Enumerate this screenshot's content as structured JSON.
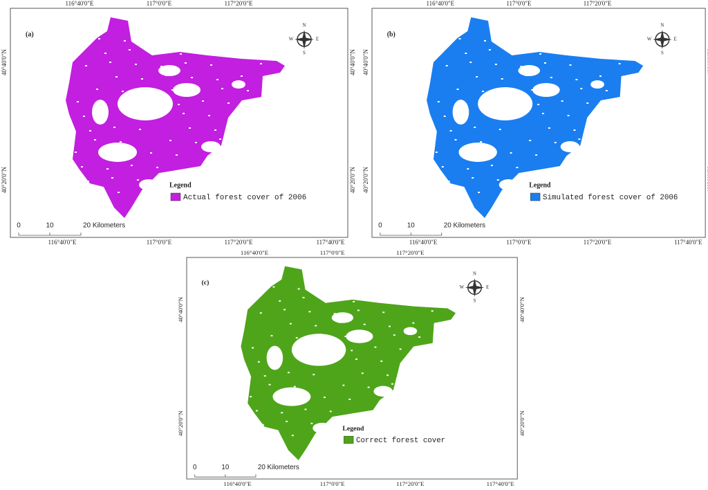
{
  "panels": [
    {
      "label": "(a)",
      "color": "#c21fe0",
      "top_ticks": [
        "116°40'0\"E",
        "117°0'0\"E",
        "117°20'0\"E"
      ],
      "bottom_ticks": [
        "116°40'0\"E",
        "117°0'0\"E",
        "117°20'0\"E",
        "117°40'0\"E"
      ],
      "left_ticks": [
        "40°40'0\"N",
        "40°20'0\"N"
      ],
      "right_ticks": [
        "40°40'0\"N",
        "40°20'0\"N"
      ],
      "compass": {
        "n": "N",
        "s": "S",
        "w": "W",
        "e": "E"
      },
      "legend_title": "Legend",
      "legend_entry": "Actual forest cover of 2006",
      "scale": [
        "0",
        "10",
        "20 Kilometers"
      ]
    },
    {
      "label": "(b)",
      "color": "#1a7ef0",
      "top_ticks": [
        "116°40'0\"E",
        "117°0'0\"E",
        "117°20'0\"E"
      ],
      "bottom_ticks": [
        "116°40'0\"E",
        "117°0'0\"E",
        "117°20'0\"E",
        "117°40'0\"E"
      ],
      "left_ticks": [
        "40°40'0\"N",
        "40°20'0\"N"
      ],
      "right_ticks": [
        "40°40'0\"N",
        "40°20'0\"N"
      ],
      "compass": {
        "n": "N",
        "s": "S",
        "w": "W",
        "e": "E"
      },
      "legend_title": "Legend",
      "legend_entry": "Simulated forest cover of 2006",
      "scale": [
        "0",
        "10",
        "20 Kilometers"
      ]
    },
    {
      "label": "(c)",
      "color": "#4ea51a",
      "top_ticks": [
        "116°40'0\"E",
        "117°0'0\"E",
        "117°20'0\"E"
      ],
      "bottom_ticks": [
        "116°40'0\"E",
        "117°0'0\"E",
        "117°20'0\"E",
        "117°40'0\"E"
      ],
      "left_ticks": [
        "40°40'0\"N",
        "40°20'0\"N"
      ],
      "right_ticks": [
        "40°40'0\"N",
        "40°20'0\"N"
      ],
      "compass": {
        "n": "N",
        "s": "S",
        "w": "W",
        "e": "E"
      },
      "legend_title": "Legend",
      "legend_entry": "Correct forest cover",
      "scale": [
        "0",
        "10",
        "20 Kilometers"
      ]
    }
  ]
}
